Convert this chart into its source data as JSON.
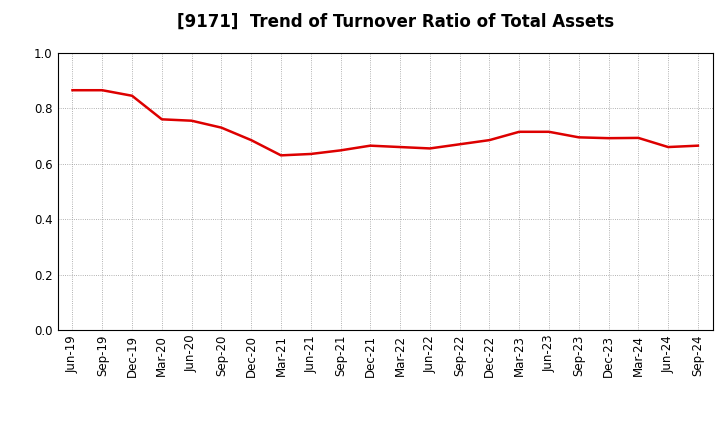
{
  "title": "[9171]  Trend of Turnover Ratio of Total Assets",
  "x_labels": [
    "Jun-19",
    "Sep-19",
    "Dec-19",
    "Mar-20",
    "Jun-20",
    "Sep-20",
    "Dec-20",
    "Mar-21",
    "Jun-21",
    "Sep-21",
    "Dec-21",
    "Mar-22",
    "Jun-22",
    "Sep-22",
    "Dec-22",
    "Mar-23",
    "Jun-23",
    "Sep-23",
    "Dec-23",
    "Mar-24",
    "Jun-24",
    "Sep-24"
  ],
  "values": [
    0.865,
    0.865,
    0.845,
    0.76,
    0.755,
    0.73,
    0.685,
    0.63,
    0.635,
    0.648,
    0.665,
    0.66,
    0.655,
    0.67,
    0.685,
    0.715,
    0.715,
    0.695,
    0.692,
    0.693,
    0.66,
    0.665
  ],
  "line_color": "#dd0000",
  "line_width": 1.8,
  "ylim": [
    0.0,
    1.0
  ],
  "yticks": [
    0.0,
    0.2,
    0.4,
    0.6,
    0.8,
    1.0
  ],
  "background_color": "#ffffff",
  "grid_color": "#999999",
  "title_fontsize": 12,
  "tick_fontsize": 8.5
}
